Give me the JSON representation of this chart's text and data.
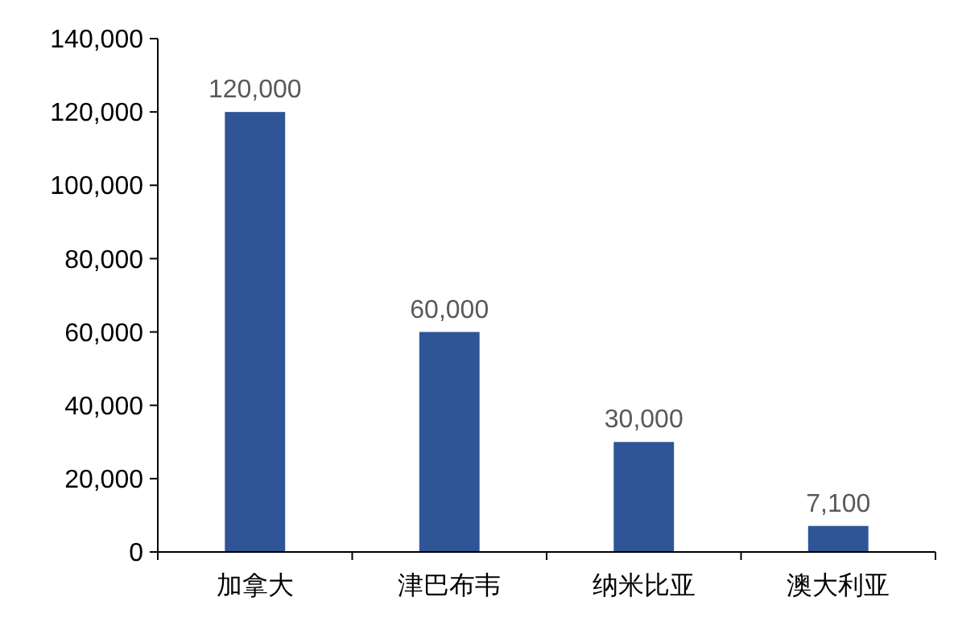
{
  "chart_data": {
    "type": "bar",
    "categories": [
      "加拿大",
      "津巴布韦",
      "纳米比亚",
      "澳大利亚"
    ],
    "values": [
      120000,
      60000,
      30000,
      7100
    ],
    "value_labels": [
      "120,000",
      "60,000",
      "30,000",
      "7,100"
    ],
    "color": "#2f5597",
    "ylim": [
      0,
      140000
    ],
    "yticks": [
      {
        "value": 0,
        "label": "0"
      },
      {
        "value": 20000,
        "label": "20,000"
      },
      {
        "value": 40000,
        "label": "40,000"
      },
      {
        "value": 60000,
        "label": "60,000"
      },
      {
        "value": 80000,
        "label": "80,000"
      },
      {
        "value": 100000,
        "label": "100,000"
      },
      {
        "value": 120000,
        "label": "120,000"
      },
      {
        "value": 140000,
        "label": "140,000"
      }
    ]
  }
}
